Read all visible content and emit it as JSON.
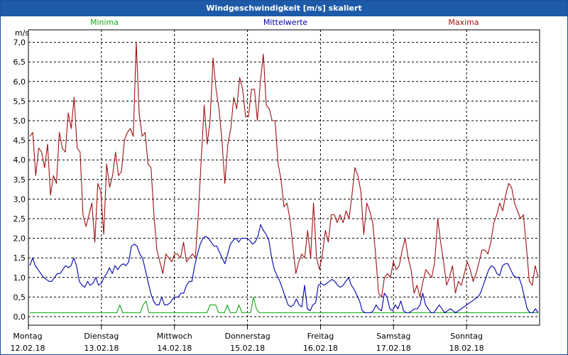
{
  "window": {
    "title": "Windgeschwindigkeit [m/s] skaliert"
  },
  "colors": {
    "titlebar": "#1d5aa8",
    "minima": "#16a816",
    "mittel": "#0000b0",
    "maxima": "#a01010",
    "grid": "#000000"
  },
  "chart_data": {
    "type": "line",
    "title": "Windgeschwindigkeit [m/s] skaliert",
    "ylabel": "m/s",
    "ylim": [
      0,
      7.5
    ],
    "yticks": [
      "0,0",
      "0,5",
      "1,0",
      "1,5",
      "2,0",
      "2,5",
      "3,0",
      "3,5",
      "4,0",
      "4,5",
      "5,0",
      "5,5",
      "6,0",
      "6,5",
      "7,0"
    ],
    "xlim": [
      0,
      7
    ],
    "days": [
      {
        "name": "Montag",
        "date": "12.02.18"
      },
      {
        "name": "Dienstag",
        "date": "13.02.18"
      },
      {
        "name": "Mittwoch",
        "date": "14.02.18"
      },
      {
        "name": "Donnerstag",
        "date": "15.02.18"
      },
      {
        "name": "Freitag",
        "date": "16.02.18"
      },
      {
        "name": "Samstag",
        "date": "17.02.18"
      },
      {
        "name": "Sonntag",
        "date": "18.02.18"
      }
    ],
    "grid": true,
    "legend_position": "top",
    "series": [
      {
        "name": "Minima",
        "color": "#16a816",
        "values": [
          0.1,
          0.1,
          0.1,
          0.1,
          0.1,
          0.1,
          0.1,
          0.1,
          0.1,
          0.1,
          0.1,
          0.1,
          0.1,
          0.1,
          0.1,
          0.1,
          0.1,
          0.1,
          0.1,
          0.1,
          0.1,
          0.1,
          0.1,
          0.1,
          0.1,
          0.1,
          0.1,
          0.1,
          0.1,
          0.1,
          0.1,
          0.3,
          0.1,
          0.1,
          0.1,
          0.1,
          0.1,
          0.1,
          0.1,
          0.3,
          0.4,
          0.1,
          0.1,
          0.1,
          0.1,
          0.1,
          0.1,
          0.1,
          0.1,
          0.1,
          0.1,
          0.1,
          0.1,
          0.1,
          0.1,
          0.1,
          0.1,
          0.1,
          0.1,
          0.1,
          0.1,
          0.1,
          0.3,
          0.3,
          0.3,
          0.1,
          0.1,
          0.1,
          0.3,
          0.1,
          0.1,
          0.1,
          0.3,
          0.1,
          0.1,
          0.1,
          0.1,
          0.5,
          0.2,
          0.1,
          0.1,
          0.1,
          0.1,
          0.1,
          0.1,
          0.1,
          0.1,
          0.1,
          0.1,
          0.1,
          0.1,
          0.1,
          0.1,
          0.1,
          0.1,
          0.1,
          0.1,
          0.1,
          0.1,
          0.1,
          0.1,
          0.1,
          0.1,
          0.1,
          0.1,
          0.1,
          0.1,
          0.1,
          0.1,
          0.1,
          0.1,
          0.1,
          0.1,
          0.1,
          0.1,
          0.1,
          0.1,
          0.1,
          0.1,
          0.1,
          0.1,
          0.1,
          0.1,
          0.1,
          0.1,
          0.1,
          0.1,
          0.1,
          0.1,
          0.1,
          0.1,
          0.1,
          0.1,
          0.1,
          0.1,
          0.1,
          0.1,
          0.1,
          0.1,
          0.1,
          0.1,
          0.1,
          0.1,
          0.1,
          0.1,
          0.1,
          0.1,
          0.1,
          0.1,
          0.1,
          0.1,
          0.1,
          0.1,
          0.1,
          0.1,
          0.1,
          0.1,
          0.1,
          0.1,
          0.1,
          0.1,
          0.1,
          0.1,
          0.1,
          0.1,
          0.1,
          0.1,
          0.1,
          0.1,
          0.1,
          0.1,
          0.1,
          0.1,
          0.1,
          0.1,
          0.1
        ]
      },
      {
        "name": "Mittelwerte",
        "color": "#0000b0",
        "values": [
          1.3,
          1.5,
          1.3,
          1.2,
          1.1,
          1.0,
          0.95,
          0.9,
          0.9,
          1.0,
          1.1,
          1.1,
          1.2,
          1.3,
          1.25,
          1.3,
          1.5,
          1.3,
          0.9,
          0.8,
          0.75,
          0.9,
          0.8,
          0.85,
          1.0,
          0.8,
          0.85,
          1.0,
          1.1,
          1.25,
          1.1,
          1.3,
          1.2,
          1.3,
          1.35,
          1.3,
          1.4,
          1.8,
          1.85,
          1.8,
          1.6,
          1.5,
          1.2,
          0.9,
          0.6,
          0.4,
          0.3,
          0.3,
          0.5,
          0.3,
          0.3,
          0.35,
          0.45,
          0.5,
          0.5,
          0.6,
          0.6,
          0.8,
          0.9,
          0.9,
          1.3,
          1.6,
          1.85,
          2.0,
          2.05,
          2.0,
          1.9,
          1.8,
          1.8,
          1.65,
          1.5,
          1.35,
          1.6,
          1.85,
          1.95,
          2.0,
          1.9,
          2.0,
          2.0,
          2.0,
          1.95,
          1.85,
          1.9,
          2.05,
          2.35,
          2.2,
          2.1,
          1.95,
          1.5,
          1.2,
          1.05,
          0.9,
          0.7,
          0.5,
          0.3,
          0.25,
          0.3,
          0.45,
          0.3,
          0.25,
          0.8,
          0.2,
          0.15,
          0.3,
          0.35,
          0.8,
          0.85,
          0.8,
          0.85,
          0.9,
          0.95,
          0.9,
          0.8,
          0.75,
          0.8,
          0.9,
          1.0,
          0.8,
          0.7,
          0.55,
          0.4,
          0.15,
          0.1,
          0.1,
          0.1,
          0.15,
          0.3,
          0.2,
          0.15,
          0.6,
          0.5,
          0.2,
          0.15,
          0.3,
          0.2,
          0.4,
          0.15,
          0.1,
          0.1,
          0.15,
          0.2,
          0.2,
          0.3,
          0.6,
          0.3,
          0.2,
          0.1,
          0.1,
          0.2,
          0.3,
          0.2,
          0.1,
          0.15,
          0.2,
          0.15,
          0.1,
          0.15,
          0.2,
          0.25,
          0.3,
          0.35,
          0.4,
          0.45,
          0.5,
          0.6,
          0.8,
          1.0,
          1.2,
          1.3,
          1.25,
          1.1,
          1.05,
          1.3,
          1.35,
          1.35,
          1.2,
          1.05,
          1.0,
          1.0,
          0.8,
          0.5,
          0.2,
          0.1,
          0.1,
          0.2,
          0.1
        ]
      },
      {
        "name": "Maxima",
        "color": "#a01010",
        "values": [
          4.6,
          4.7,
          3.6,
          4.3,
          4.2,
          3.8,
          4.4,
          3.1,
          3.6,
          3.4,
          4.7,
          4.3,
          4.2,
          5.2,
          4.8,
          5.6,
          4.3,
          4.2,
          2.6,
          2.3,
          2.6,
          2.9,
          1.9,
          3.4,
          3.2,
          2.1,
          3.9,
          3.3,
          3.6,
          4.2,
          3.6,
          3.7,
          4.5,
          4.7,
          4.8,
          4.6,
          7.0,
          5.2,
          4.6,
          4.7,
          3.9,
          3.8,
          2.6,
          1.7,
          1.4,
          1.1,
          1.6,
          1.5,
          1.4,
          1.6,
          1.6,
          1.5,
          1.9,
          1.4,
          1.5,
          1.6,
          1.5,
          2.6,
          4.0,
          5.4,
          4.4,
          5.0,
          6.6,
          5.8,
          5.3,
          4.5,
          3.4,
          4.4,
          4.8,
          5.6,
          5.3,
          6.1,
          5.8,
          5.1,
          5.1,
          5.8,
          5.8,
          5.0,
          6.0,
          6.7,
          5.4,
          5.3,
          5.0,
          5.0,
          3.9,
          3.5,
          2.8,
          2.9,
          2.5,
          1.8,
          1.1,
          1.4,
          1.6,
          1.5,
          2.2,
          1.5,
          2.9,
          1.5,
          1.2,
          1.6,
          2.2,
          1.9,
          2.6,
          2.6,
          2.4,
          2.6,
          2.4,
          2.7,
          2.5,
          3.1,
          3.8,
          3.6,
          3.2,
          2.1,
          2.9,
          2.7,
          2.4,
          1.6,
          0.6,
          0.5,
          1.0,
          1.1,
          1.0,
          1.4,
          1.2,
          1.3,
          1.7,
          2.0,
          1.5,
          1.2,
          0.6,
          0.8,
          0.5,
          0.9,
          1.2,
          1.1,
          1.0,
          1.4,
          2.5,
          1.9,
          1.4,
          0.8,
          1.0,
          1.3,
          0.6,
          0.9,
          0.8,
          1.1,
          1.4,
          1.2,
          0.9,
          1.1,
          1.4,
          1.7,
          1.7,
          1.6,
          1.9,
          2.4,
          2.6,
          2.9,
          2.7,
          3.1,
          3.4,
          3.3,
          2.9,
          2.7,
          2.5,
          2.6,
          1.8,
          0.9,
          0.8,
          1.3,
          1.0
        ]
      }
    ]
  }
}
